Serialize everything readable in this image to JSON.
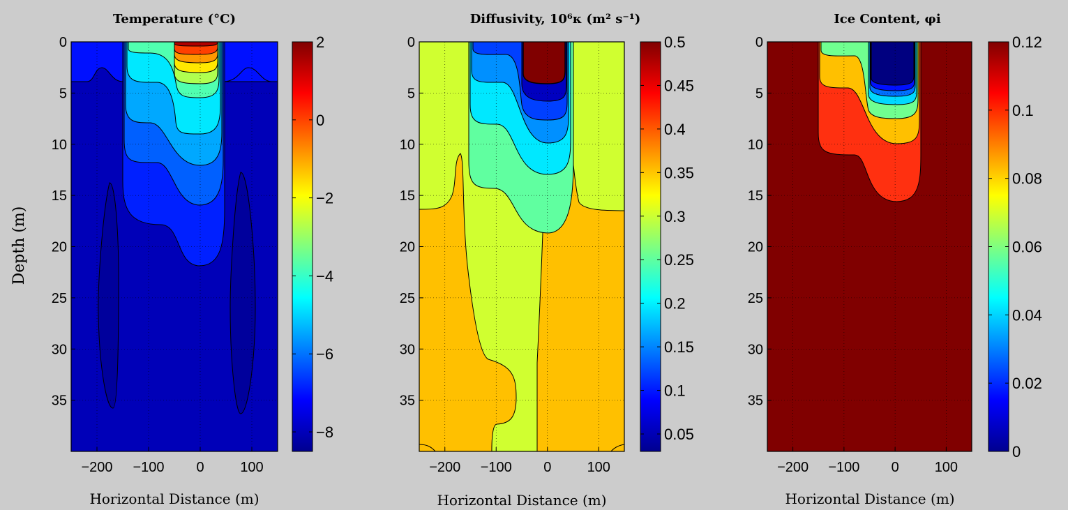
{
  "chart_data": [
    {
      "type": "contour",
      "title": "Temperature (°C)",
      "xlabel": "Horizontal Distance (m)",
      "ylabel": "Depth (m)",
      "xlim": [
        -250,
        150
      ],
      "ylim": [
        0,
        40
      ],
      "y_reversed": true,
      "xticks": [
        "−200",
        "−100",
        "0",
        "100"
      ],
      "xtick_values": [
        -200,
        -100,
        0,
        100
      ],
      "yticks": [
        "0",
        "5",
        "10",
        "15",
        "20",
        "25",
        "30",
        "35"
      ],
      "ytick_values": [
        0,
        5,
        10,
        15,
        20,
        25,
        30,
        35
      ],
      "grid": true,
      "colorbar": {
        "range": [
          -8.5,
          2
        ],
        "ticks": [
          "2",
          "0",
          "−2",
          "−4",
          "−6",
          "−8"
        ],
        "tick_values": [
          2,
          0,
          -2,
          -4,
          -6,
          -8
        ]
      },
      "regions": [
        {
          "name": "background",
          "value": -8.0,
          "color": "#0000b8"
        },
        {
          "name": "surface",
          "value": -7.0,
          "color": "#0010ff"
        },
        {
          "name": "band1",
          "value": -6.0,
          "color": "#0060ff"
        },
        {
          "name": "band2",
          "value": -5.0,
          "color": "#00a8ff"
        },
        {
          "name": "band3",
          "value": -4.0,
          "color": "#00e8ff"
        },
        {
          "name": "band4",
          "value": -3.0,
          "color": "#50ffb0"
        },
        {
          "name": "band5",
          "value": -2.0,
          "color": "#b0ff50"
        },
        {
          "name": "band6",
          "value": -1.0,
          "color": "#ffe800"
        },
        {
          "name": "band7",
          "value": 0.0,
          "color": "#ff9800"
        },
        {
          "name": "band8",
          "value": 1.0,
          "color": "#ff4000"
        },
        {
          "name": "core",
          "value": 2.0,
          "color": "#b00000"
        }
      ]
    },
    {
      "type": "contour",
      "title": "Diffusivity, 10⁶κ (m² s⁻¹)",
      "xlabel": "Horizontal Distance (m)",
      "xlim": [
        -250,
        150
      ],
      "ylim": [
        0,
        40
      ],
      "y_reversed": true,
      "xticks": [
        "−200",
        "−100",
        "0",
        "100"
      ],
      "xtick_values": [
        -200,
        -100,
        0,
        100
      ],
      "yticks": [
        "0",
        "5",
        "10",
        "15",
        "20",
        "25",
        "30",
        "35"
      ],
      "ytick_values": [
        0,
        5,
        10,
        15,
        20,
        25,
        30,
        35
      ],
      "grid": true,
      "colorbar": {
        "range": [
          0.03,
          0.5
        ],
        "ticks": [
          "0.5",
          "0.45",
          "0.4",
          "0.35",
          "0.3",
          "0.25",
          "0.2",
          "0.15",
          "0.1",
          "0.05"
        ],
        "tick_values": [
          0.5,
          0.45,
          0.4,
          0.35,
          0.3,
          0.25,
          0.2,
          0.15,
          0.1,
          0.05
        ]
      },
      "regions": [
        {
          "name": "frozen",
          "value": 0.3,
          "color": "#d0ff30"
        },
        {
          "name": "thawed-sides",
          "value": 0.36,
          "color": "#ffc000"
        },
        {
          "name": "band1",
          "value": 0.25,
          "color": "#60ffa0"
        },
        {
          "name": "band2",
          "value": 0.2,
          "color": "#00e8ff"
        },
        {
          "name": "band3",
          "value": 0.15,
          "color": "#0090ff"
        },
        {
          "name": "band4",
          "value": 0.1,
          "color": "#0040ff"
        },
        {
          "name": "band5",
          "value": 0.05,
          "color": "#0000c0"
        },
        {
          "name": "core",
          "value": 0.5,
          "color": "#800000"
        }
      ]
    },
    {
      "type": "contour",
      "title": "Ice Content, φi",
      "xlabel": "Horizontal Distance (m)",
      "xlim": [
        -250,
        150
      ],
      "ylim": [
        0,
        40
      ],
      "y_reversed": true,
      "xticks": [
        "−200",
        "−100",
        "0",
        "100"
      ],
      "xtick_values": [
        -200,
        -100,
        0,
        100
      ],
      "yticks": [
        "0",
        "5",
        "10",
        "15",
        "20",
        "25",
        "30",
        "35"
      ],
      "ytick_values": [
        0,
        5,
        10,
        15,
        20,
        25,
        30,
        35
      ],
      "grid": true,
      "colorbar": {
        "range": [
          0,
          0.12
        ],
        "ticks": [
          "0.12",
          "0.1",
          "0.08",
          "0.06",
          "0.04",
          "0.02",
          "0"
        ],
        "tick_values": [
          0.12,
          0.1,
          0.08,
          0.06,
          0.04,
          0.02,
          0
        ]
      },
      "regions": [
        {
          "name": "background",
          "value": 0.12,
          "color": "#800000"
        },
        {
          "name": "band1",
          "value": 0.105,
          "color": "#ff3010"
        },
        {
          "name": "band2",
          "value": 0.085,
          "color": "#ffc000"
        },
        {
          "name": "band3",
          "value": 0.065,
          "color": "#70ff90"
        },
        {
          "name": "band4",
          "value": 0.045,
          "color": "#00d8ff"
        },
        {
          "name": "band5",
          "value": 0.025,
          "color": "#0070ff"
        },
        {
          "name": "band6",
          "value": 0.01,
          "color": "#0010ff"
        },
        {
          "name": "core",
          "value": 0.0,
          "color": "#000080"
        }
      ]
    }
  ]
}
